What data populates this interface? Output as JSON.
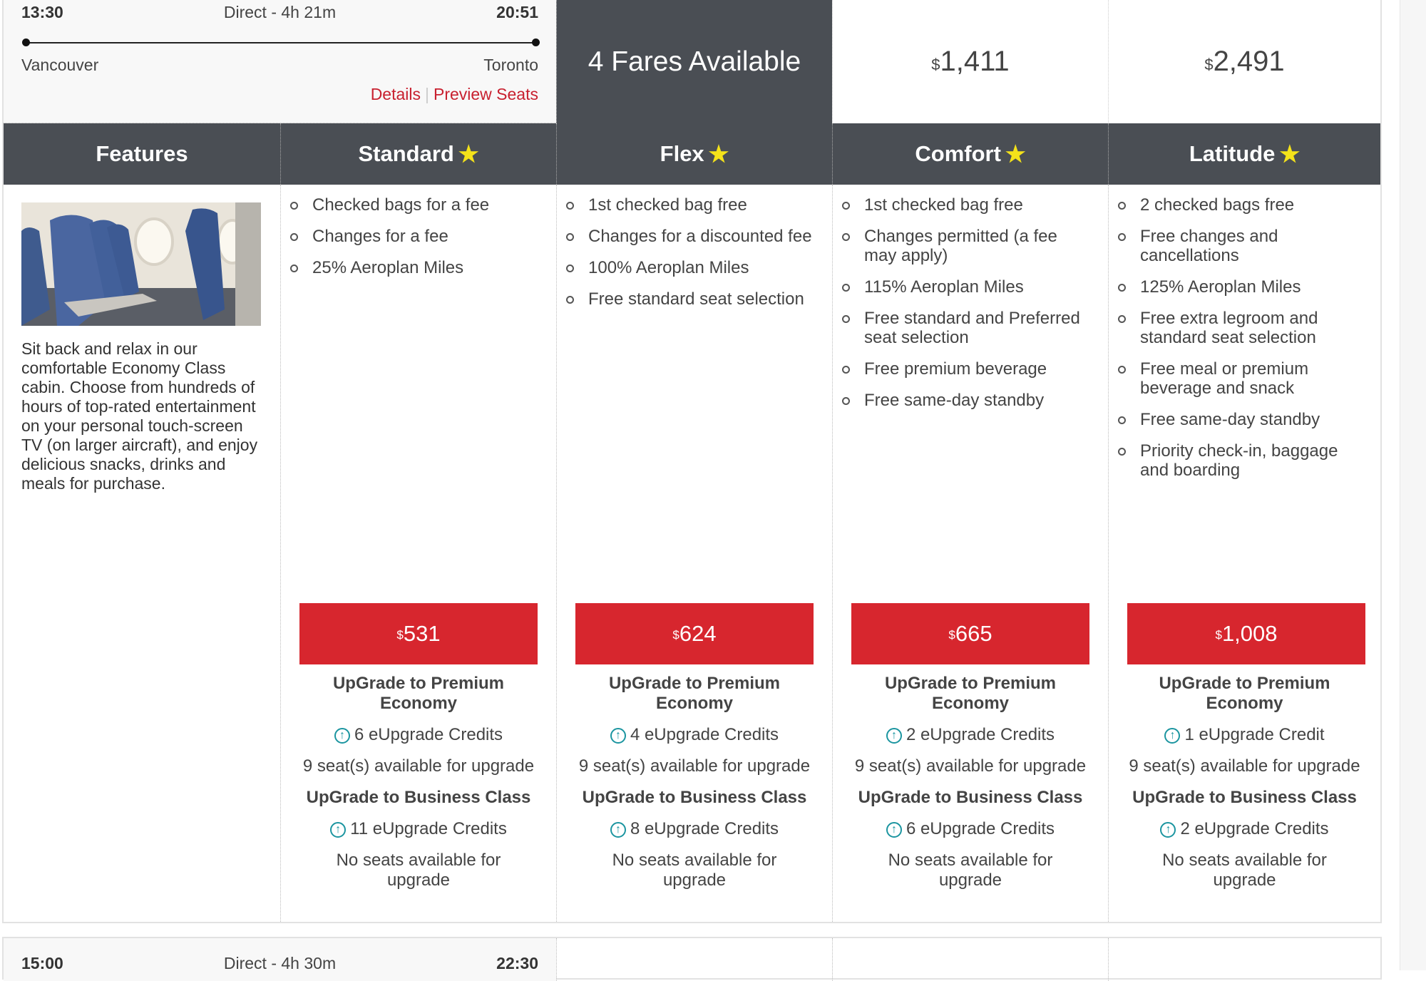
{
  "flight1": {
    "departure_time": "13:30",
    "duration": "Direct - 4h 21m",
    "arrival_time": "20:51",
    "origin": "Vancouver",
    "destination": "Toronto",
    "details_link": "Details",
    "preview_seats_link": "Preview Seats",
    "fares_available": "4 Fares Available",
    "top_prices": [
      {
        "currency": "$",
        "amount": "1,411"
      },
      {
        "currency": "$",
        "amount": "2,491"
      }
    ]
  },
  "features": {
    "header": "Features",
    "image_icon": "economy-cabin-seats-photo",
    "description": "Sit back and relax in our comfortable Economy Class cabin. Choose from hundreds of hours of top-rated entertainment on your personal touch-screen TV (on larger aircraft), and enjoy delicious snacks, drinks and meals for purchase."
  },
  "fares": [
    {
      "name": "Standard",
      "currency": "$",
      "price": "531",
      "features": [
        "Checked bags for a fee",
        "Changes for a fee",
        "25% Aeroplan Miles"
      ],
      "premium_title": "UpGrade to Premium Economy",
      "premium_credits": "6 eUpgrade Credits",
      "premium_seats": "9 seat(s) available for upgrade",
      "business_title": "UpGrade to Business Class",
      "business_credits": "11 eUpgrade Credits",
      "business_seats": "No seats available for upgrade"
    },
    {
      "name": "Flex",
      "currency": "$",
      "price": "624",
      "features": [
        "1st checked bag free",
        "Changes for a discounted fee",
        "100% Aeroplan Miles",
        "Free standard seat selection"
      ],
      "premium_title": "UpGrade to Premium Economy",
      "premium_credits": "4 eUpgrade Credits",
      "premium_seats": "9 seat(s) available for upgrade",
      "business_title": "UpGrade to Business Class",
      "business_credits": "8 eUpgrade Credits",
      "business_seats": "No seats available for upgrade"
    },
    {
      "name": "Comfort",
      "currency": "$",
      "price": "665",
      "features": [
        "1st checked bag free",
        "Changes permitted (a fee may apply)",
        "115% Aeroplan Miles",
        "Free standard and Preferred seat selection",
        "Free premium beverage",
        "Free same-day standby"
      ],
      "premium_title": "UpGrade to Premium Economy",
      "premium_credits": "2 eUpgrade Credits",
      "premium_seats": "9 seat(s) available for upgrade",
      "business_title": "UpGrade to Business Class",
      "business_credits": "6 eUpgrade Credits",
      "business_seats": "No seats available for upgrade"
    },
    {
      "name": "Latitude",
      "currency": "$",
      "price": "1,008",
      "features": [
        "2 checked bags free",
        "Free changes and cancellations",
        "125% Aeroplan Miles",
        "Free extra legroom and standard seat selection",
        "Free meal or premium beverage and snack",
        "Free same-day standby",
        "Priority check-in, baggage and boarding"
      ],
      "premium_title": "UpGrade to Premium Economy",
      "premium_credits": "1 eUpgrade Credit",
      "premium_seats": "9 seat(s) available for upgrade",
      "business_title": "UpGrade to Business Class",
      "business_credits": "2 eUpgrade Credits",
      "business_seats": "No seats available for upgrade"
    }
  ],
  "flight2": {
    "departure_time": "15:00",
    "duration": "Direct - 4h 30m",
    "arrival_time": "22:30"
  },
  "colors": {
    "header_bg": "#4a4e54",
    "price_button": "#d7262e",
    "link": "#c8202f",
    "star": "#f4e21a",
    "upgrade_icon": "#1b95a0"
  },
  "icons": {
    "star": "star-icon",
    "upgrade": "upgrade-arrow-circle-icon"
  }
}
